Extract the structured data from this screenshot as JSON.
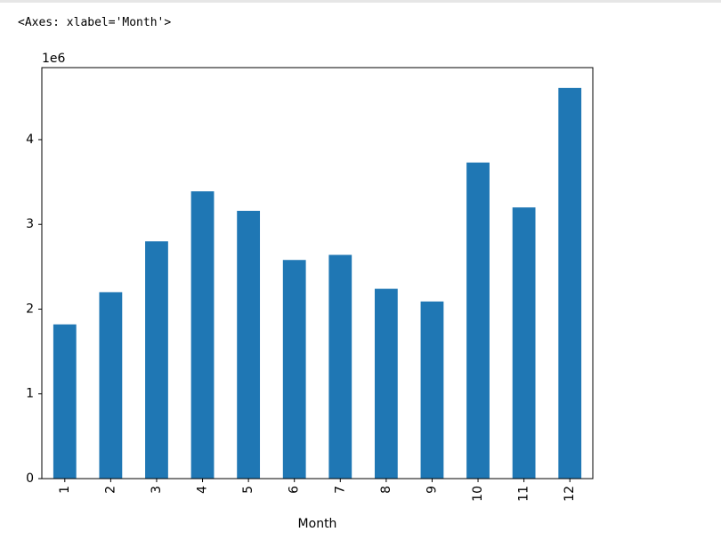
{
  "cell_output": "<Axes: xlabel='Month'>",
  "chart_data": {
    "type": "bar",
    "xlabel": "Month",
    "ylabel": "",
    "offset_label": "1e6",
    "categories": [
      "1",
      "2",
      "3",
      "4",
      "5",
      "6",
      "7",
      "8",
      "9",
      "10",
      "11",
      "12"
    ],
    "values": [
      1820000,
      2200000,
      2800000,
      3390000,
      3160000,
      2580000,
      2640000,
      2240000,
      2090000,
      3730000,
      3200000,
      4610000
    ],
    "ylim": [
      0,
      4850000
    ],
    "yticks": [
      0,
      1000000,
      2000000,
      3000000,
      4000000
    ],
    "ytick_labels": [
      "0",
      "1",
      "2",
      "3",
      "4"
    ],
    "grid": false,
    "bar_color": "#1f77b4"
  }
}
